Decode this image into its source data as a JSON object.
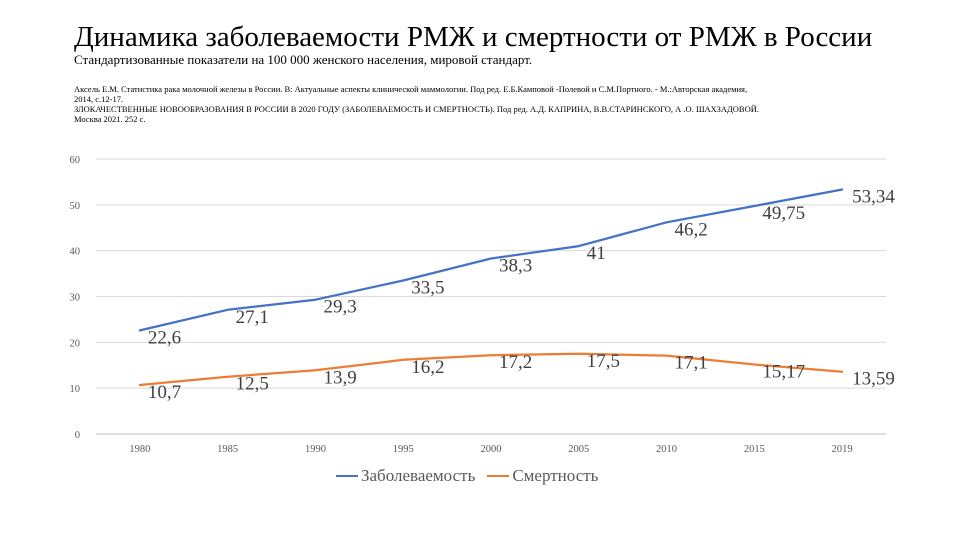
{
  "slide": {
    "title": "Динамика заболеваемости РМЖ и смертности от РМЖ в России",
    "subtitle": "Стандартизованные показатели на 100 000 женского населения, мировой стандарт.",
    "sources": [
      "Аксель Е.М. Статистика рака молочной железы в России. В: Актуальные аспекты клинической маммологии. Под ред.        Е.Б.Камповой -Полевой и С.М.Портного.  - М.:Авторская академия,",
      "2014, с.12-17.",
      "ЗЛОКАЧЕСТВЕННЫЕ НОВООБРАЗОВАНИЯ В РОССИИ В 2020 ГОДУ (ЗАБОЛЕВАЕМОСТЬ И СМЕРТНОСТЬ). Под ред. А.Д. КАПРИНА, В.В.СТАРИНСКОГО, А            .О. ШАХЗАДОВОЙ.",
      "Москва 2021. 252 с."
    ]
  },
  "chart_data": {
    "type": "line",
    "categories": [
      "1980",
      "1985",
      "1990",
      "1995",
      "2000",
      "2005",
      "2010",
      "2015",
      "2019"
    ],
    "ylim": [
      0,
      60
    ],
    "yticks": [
      0,
      10,
      20,
      30,
      40,
      50,
      60
    ],
    "grid": true,
    "legend_position": "bottom",
    "series": [
      {
        "name": "Заболеваемость",
        "color": "#4472c4",
        "values": [
          22.6,
          27.1,
          29.3,
          33.5,
          38.3,
          41,
          46.2,
          49.75,
          53.34
        ],
        "labels": [
          "22,6",
          "27,1",
          "29,3",
          "33,5",
          "38,3",
          "41",
          "46,2",
          "49,75",
          "53,34"
        ]
      },
      {
        "name": "Смертность",
        "color": "#ed7d31",
        "values": [
          10.7,
          12.5,
          13.9,
          16.2,
          17.2,
          17.5,
          17.1,
          15.17,
          13.59
        ],
        "labels": [
          "10,7",
          "12,5",
          "13,9",
          "16,2",
          "17,2",
          "17,5",
          "17,1",
          "15,17",
          "13,59"
        ]
      }
    ]
  }
}
